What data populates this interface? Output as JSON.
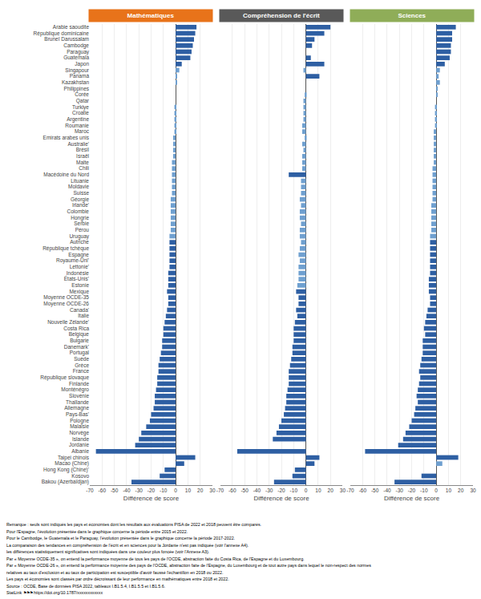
{
  "chart_data": {
    "type": "bar",
    "orientation": "horizontal",
    "grid": true,
    "xlabel": "Différence de score",
    "xlim": [
      -70,
      30
    ],
    "xticks": [
      -70,
      -60,
      -50,
      -40,
      -30,
      -20,
      -10,
      0,
      10,
      20,
      30
    ],
    "categories": [
      "Arabie saoudite",
      "République dominicaine",
      "Bruneï Darussalam",
      "Cambodge",
      "Paraguay",
      "Guatemala",
      "Japon",
      "Singapour",
      "Panamá",
      "Kazakhstan",
      "Philippines",
      "Corée",
      "Qatar",
      "Turkiye",
      "Croatie",
      "Argentine",
      "Roumanie",
      "Maroc",
      "Emirats arabes unis",
      "Australie'",
      "Brésil",
      "Israël",
      "Malte",
      "Chili",
      "Macédoine du Nord",
      "Lituanie",
      "Moldavie",
      "Suisse",
      "Géorgie",
      "Irlande'",
      "Colombie",
      "Hongrie",
      "Serbie",
      "Pérou",
      "Uruguay",
      "Autriche",
      "République tchèque",
      "Espagne",
      "Royaume-Uni'",
      "Lettonie'",
      "Indonésie",
      "États-Unis'",
      "Estonie",
      "Mexique",
      "Moyenne OCDE-35",
      "Moyenne OCDE-26",
      "Canada'",
      "Italie",
      "Nouvelle Zélande'",
      "Costa Rica",
      "Belgique",
      "Bulgarie",
      "Danemark'",
      "Portugal",
      "Suède",
      "Grèce",
      "France",
      "République slovaque",
      "Finlande",
      "Monténégro",
      "Slovénie",
      "Thaïlande",
      "Allemagne",
      "Pays-Bas'",
      "Pologne",
      "Malaisie",
      "Norvège",
      "Islande",
      "Jordanie",
      "Albanie",
      "Taipei chinois",
      "Macao (Chine)",
      "Hong Kong (Chine)'",
      "Kosovo",
      "Bakou (Azerbaïdjan)"
    ],
    "series": [
      {
        "name": "Mathématiques",
        "color": "#E8731A",
        "values": [
          17,
          16,
          15,
          14,
          13,
          12,
          5,
          3,
          1,
          1,
          0,
          0,
          0,
          -1,
          -1,
          -1,
          -1,
          -1,
          -2,
          -2,
          -2,
          -2,
          -3,
          -3,
          -3,
          -3,
          -3,
          -3,
          -4,
          -4,
          -4,
          -4,
          -4,
          -4,
          -5,
          -5,
          -5,
          -5,
          -5,
          -5,
          -6,
          -6,
          -6,
          -7,
          -6,
          -6,
          -7,
          -8,
          -9,
          -10,
          -10,
          -11,
          -11,
          -12,
          -13,
          -14,
          -14,
          -15,
          -15,
          -16,
          -17,
          -17,
          -18,
          -20,
          -21,
          -24,
          -28,
          -30,
          -33,
          -65,
          16,
          7,
          -9,
          -13,
          -36
        ],
        "colors": [
          "#2E5FA3",
          "#2E5FA3",
          "#2E5FA3",
          "#2E5FA3",
          "#2E5FA3",
          "#2E5FA3",
          "#2E5FA3",
          "#6FA0D0",
          "#6FA0D0",
          "#6FA0D0",
          "#6FA0D0",
          "#6FA0D0",
          "#6FA0D0",
          "#6FA0D0",
          "#6FA0D0",
          "#6FA0D0",
          "#6FA0D0",
          "#6FA0D0",
          "#6FA0D0",
          "#6FA0D0",
          "#6FA0D0",
          "#6FA0D0",
          "#6FA0D0",
          "#6FA0D0",
          "#6FA0D0",
          "#6FA0D0",
          "#6FA0D0",
          "#6FA0D0",
          "#6FA0D0",
          "#6FA0D0",
          "#6FA0D0",
          "#6FA0D0",
          "#6FA0D0",
          "#6FA0D0",
          "#6FA0D0",
          "#2E5FA3",
          "#2E5FA3",
          "#2E5FA3",
          "#2E5FA3",
          "#2E5FA3",
          "#2E5FA3",
          "#2E5FA3",
          "#2E5FA3",
          "#2E5FA3",
          "#2E5FA3",
          "#2E5FA3",
          "#2E5FA3",
          "#2E5FA3",
          "#2E5FA3",
          "#2E5FA3",
          "#2E5FA3",
          "#2E5FA3",
          "#2E5FA3",
          "#2E5FA3",
          "#2E5FA3",
          "#2E5FA3",
          "#2E5FA3",
          "#2E5FA3",
          "#2E5FA3",
          "#2E5FA3",
          "#2E5FA3",
          "#2E5FA3",
          "#2E5FA3",
          "#2E5FA3",
          "#2E5FA3",
          "#2E5FA3",
          "#2E5FA3",
          "#2E5FA3",
          "#2E5FA3",
          "#2E5FA3",
          "#2E5FA3",
          "#2E5FA3",
          "#2E5FA3",
          "#2E5FA3",
          "#2E5FA3"
        ]
      },
      {
        "name": "Compréhension de l'écrit",
        "color": "#595959",
        "values": [
          20,
          15,
          7,
          5,
          0,
          4,
          15,
          -2,
          11,
          0,
          0,
          -1,
          -2,
          -2,
          -2,
          -2,
          -3,
          -3,
          -1,
          -3,
          -2,
          -3,
          -3,
          -3,
          -14,
          -4,
          -4,
          -4,
          -5,
          -4,
          -5,
          -5,
          -4,
          -5,
          -5,
          -4,
          -5,
          -6,
          -5,
          -6,
          -6,
          -6,
          -7,
          -8,
          -6,
          -6,
          -8,
          -7,
          -9,
          -10,
          -10,
          -10,
          -11,
          -11,
          -12,
          -13,
          -14,
          -14,
          -14,
          -15,
          -16,
          -16,
          -17,
          -18,
          -20,
          -22,
          -24,
          -27,
          0,
          -56,
          11,
          7,
          -9,
          -11,
          -26
        ],
        "colors": [
          "#2E5FA3",
          "#2E5FA3",
          "#2E5FA3",
          "#2E5FA3",
          "#6FA0D0",
          "#2E5FA3",
          "#2E5FA3",
          "#6FA0D0",
          "#2E5FA3",
          "#6FA0D0",
          "#6FA0D0",
          "#6FA0D0",
          "#6FA0D0",
          "#6FA0D0",
          "#6FA0D0",
          "#6FA0D0",
          "#6FA0D0",
          "#6FA0D0",
          "#6FA0D0",
          "#6FA0D0",
          "#6FA0D0",
          "#6FA0D0",
          "#6FA0D0",
          "#6FA0D0",
          "#2E5FA3",
          "#6FA0D0",
          "#6FA0D0",
          "#6FA0D0",
          "#6FA0D0",
          "#6FA0D0",
          "#6FA0D0",
          "#6FA0D0",
          "#6FA0D0",
          "#6FA0D0",
          "#6FA0D0",
          "#6FA0D0",
          "#6FA0D0",
          "#6FA0D0",
          "#6FA0D0",
          "#6FA0D0",
          "#6FA0D0",
          "#6FA0D0",
          "#6FA0D0",
          "#2E5FA3",
          "#2E5FA3",
          "#2E5FA3",
          "#2E5FA3",
          "#2E5FA3",
          "#2E5FA3",
          "#2E5FA3",
          "#2E5FA3",
          "#2E5FA3",
          "#2E5FA3",
          "#2E5FA3",
          "#2E5FA3",
          "#2E5FA3",
          "#2E5FA3",
          "#2E5FA3",
          "#2E5FA3",
          "#2E5FA3",
          "#2E5FA3",
          "#2E5FA3",
          "#2E5FA3",
          "#2E5FA3",
          "#2E5FA3",
          "#2E5FA3",
          "#2E5FA3",
          "#2E5FA3",
          "#6FA0D0",
          "#2E5FA3",
          "#2E5FA3",
          "#2E5FA3",
          "#2E5FA3",
          "#2E5FA3",
          "#2E5FA3"
        ]
      },
      {
        "name": "Sciences",
        "color": "#8FAD58",
        "values": [
          16,
          13,
          13,
          12,
          12,
          11,
          7,
          3,
          2,
          3,
          1,
          1,
          0,
          -1,
          -1,
          -1,
          -1,
          -2,
          -2,
          -2,
          -2,
          -2,
          -2,
          -3,
          -3,
          -3,
          -3,
          -3,
          -3,
          -4,
          -4,
          -4,
          -4,
          -4,
          -5,
          -5,
          -5,
          -5,
          -5,
          -5,
          -5,
          -6,
          -6,
          -6,
          -5,
          -5,
          -7,
          -8,
          -9,
          -10,
          -9,
          -11,
          -11,
          -11,
          -12,
          -13,
          -14,
          -13,
          -14,
          -15,
          -16,
          -15,
          -17,
          -18,
          -20,
          -22,
          -25,
          -27,
          -31,
          -58,
          18,
          5,
          0,
          -12,
          -34
        ],
        "colors": [
          "#2E5FA3",
          "#2E5FA3",
          "#2E5FA3",
          "#2E5FA3",
          "#2E5FA3",
          "#2E5FA3",
          "#2E5FA3",
          "#6FA0D0",
          "#6FA0D0",
          "#6FA0D0",
          "#6FA0D0",
          "#6FA0D0",
          "#6FA0D0",
          "#6FA0D0",
          "#6FA0D0",
          "#6FA0D0",
          "#6FA0D0",
          "#6FA0D0",
          "#6FA0D0",
          "#6FA0D0",
          "#6FA0D0",
          "#6FA0D0",
          "#6FA0D0",
          "#6FA0D0",
          "#6FA0D0",
          "#6FA0D0",
          "#6FA0D0",
          "#6FA0D0",
          "#6FA0D0",
          "#6FA0D0",
          "#6FA0D0",
          "#6FA0D0",
          "#6FA0D0",
          "#6FA0D0",
          "#6FA0D0",
          "#2E5FA3",
          "#2E5FA3",
          "#2E5FA3",
          "#2E5FA3",
          "#2E5FA3",
          "#2E5FA3",
          "#2E5FA3",
          "#2E5FA3",
          "#2E5FA3",
          "#2E5FA3",
          "#2E5FA3",
          "#2E5FA3",
          "#2E5FA3",
          "#2E5FA3",
          "#2E5FA3",
          "#2E5FA3",
          "#2E5FA3",
          "#2E5FA3",
          "#2E5FA3",
          "#2E5FA3",
          "#2E5FA3",
          "#2E5FA3",
          "#2E5FA3",
          "#2E5FA3",
          "#2E5FA3",
          "#2E5FA3",
          "#2E5FA3",
          "#2E5FA3",
          "#2E5FA3",
          "#2E5FA3",
          "#2E5FA3",
          "#2E5FA3",
          "#2E5FA3",
          "#2E5FA3",
          "#2E5FA3",
          "#2E5FA3",
          "#6FA0D0",
          "#6FA0D0",
          "#2E5FA3",
          "#2E5FA3"
        ]
      }
    ],
    "annotations": [
      "Remarque : seuls sont indiqués les pays et économies dont les résultats aux évaluations PISA de 2022 et 2018 peuvent être comparés.",
      "Pour l'Espagne, l'évolution présentée dans le graphique concerne la période entre 2015 et 2022.",
      "Pour le Cambodge, le Guatemala et le Paraguay, l'évolution présentée dans le graphique concerne la période 2017-2022.",
      "La comparaison des tendances en compréhension de l'écrit et en sciences pour la Jordanie n'est pas indiquée (voir l'annexe A4).",
      "les différences statistiquement significatives sont indiquées dans une couleur plus foncée (voir l'Annexe A3).",
      "Par « Moyenne OCDE-35 », on entend la performance moyenne de tous les pays de l'OCDE, abstraction faite du Costa Rica, de l'Espagne et du Luxembourg.",
      "Par « Moyenne OCDE-26 », on entend la performance moyenne des pays de l'OCDE, abstraction faite de l'Espagne, du Luxembourg et de tout autre pays dans lequel le non-respect des normes",
      "relatives au taux d'exclusion et au taux de participation est susceptible d'avoir faussé l'échantillon en 2018 ou 2022.",
      "Les pays et économies sont classés par ordre décroissant de leur performance en mathématiques entre 2018 et 2022.",
      "Source : OCDE, Base de données PISA 2022, tableaux I.B1.5.4, I.B1.5.5 et I.B1.5.6.",
      "StatLink ⚑⚑⚑ https://doi.org/10.1787/xxxxxxxxxxxx"
    ]
  }
}
